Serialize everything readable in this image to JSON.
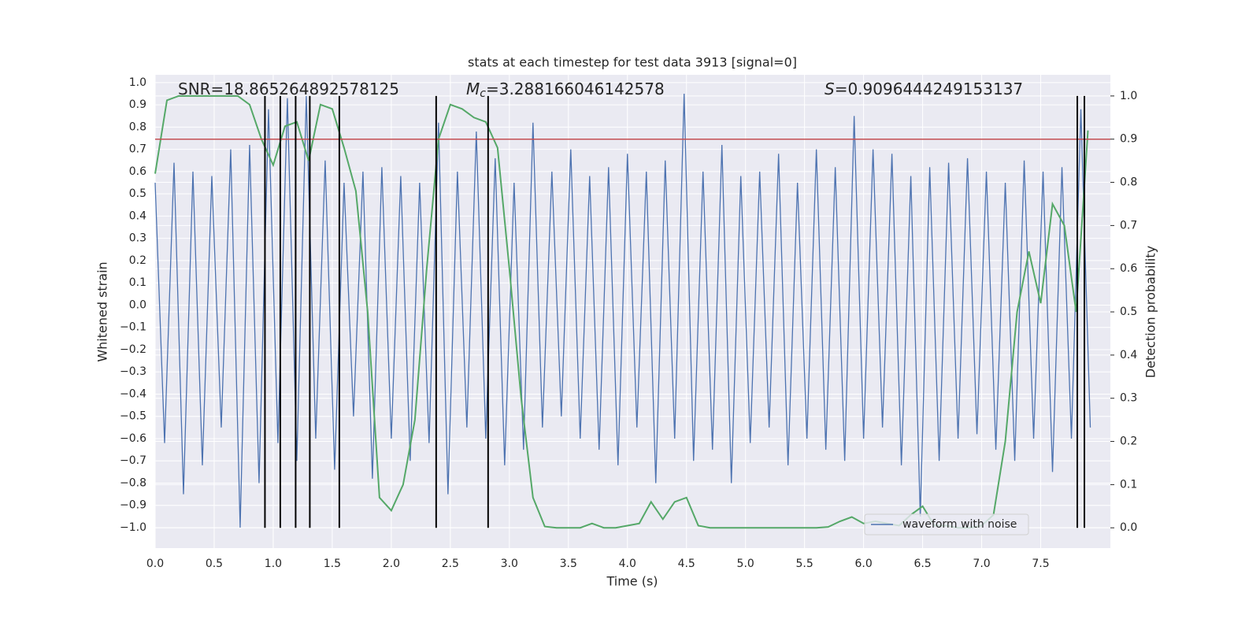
{
  "chart_data": {
    "type": "line",
    "title": "stats at each timestep for test data 3913 [signal=0]",
    "x_label": "Time (s)",
    "y_label": "Whitened strain",
    "y2_label": "Detection probability",
    "annotations": [
      {
        "text": "SNR=18.865264892578125"
      },
      {
        "symbol": "M",
        "subscript": "c",
        "text": "=3.288166046142578"
      },
      {
        "symbol": "S",
        "text": "=0.9096444249153137"
      }
    ],
    "grid": true,
    "legend": "lower right",
    "xlim": [
      0,
      8.09
    ],
    "ylim": [
      -1.092,
      1.035
    ],
    "y2lim": [
      -0.047,
      1.049
    ],
    "xticks": [
      {
        "value": 0,
        "label": "0.0"
      },
      0.5,
      {
        "value": 1,
        "label": "1.0"
      },
      1.5,
      {
        "value": 2,
        "label": "2.0"
      },
      2.5,
      {
        "value": 3,
        "label": "3.0"
      },
      3.5,
      {
        "value": 4,
        "label": "4.0"
      },
      4.5,
      {
        "value": 5,
        "label": "5.0"
      },
      5.5,
      {
        "value": 6,
        "label": "6.0"
      },
      6.5,
      {
        "value": 7,
        "label": "7.0"
      },
      7.5
    ],
    "yticks": [
      {
        "value": -1,
        "label": "−1.0"
      },
      {
        "value": -0.9,
        "label": "−0.9"
      },
      {
        "value": -0.8,
        "label": "−0.8"
      },
      {
        "value": -0.7,
        "label": "−0.7"
      },
      {
        "value": -0.6,
        "label": "−0.6"
      },
      {
        "value": -0.5,
        "label": "−0.5"
      },
      {
        "value": -0.4,
        "label": "−0.4"
      },
      {
        "value": -0.3,
        "label": "−0.3"
      },
      {
        "value": -0.2,
        "label": "−0.2"
      },
      {
        "value": -0.1,
        "label": "−0.1"
      },
      {
        "value": 0,
        "label": "0.0"
      },
      0.1,
      0.2,
      0.3,
      0.4,
      0.5,
      0.6,
      0.7,
      0.8,
      0.9,
      {
        "value": 1,
        "label": "1.0"
      }
    ],
    "y2ticks": [
      {
        "value": 0,
        "label": "0.0"
      },
      0.1,
      0.2,
      0.3,
      0.4,
      0.5,
      0.6,
      0.7,
      0.8,
      0.9,
      {
        "value": 1,
        "label": "1.0"
      }
    ],
    "series": [
      {
        "name": "waveform with noise",
        "color": "#4c72b0",
        "x": [
          0.0,
          0.08,
          0.16,
          0.24,
          0.32,
          0.4,
          0.48,
          0.56,
          0.64,
          0.72,
          0.8,
          0.88,
          0.96,
          1.04,
          1.12,
          1.2,
          1.28,
          1.36,
          1.44,
          1.52,
          1.6,
          1.68,
          1.76,
          1.84,
          1.92,
          2.0,
          2.08,
          2.16,
          2.24,
          2.32,
          2.4,
          2.48,
          2.56,
          2.64,
          2.72,
          2.8,
          2.88,
          2.96,
          3.04,
          3.12,
          3.2,
          3.28,
          3.36,
          3.44,
          3.52,
          3.6,
          3.68,
          3.76,
          3.84,
          3.92,
          4.0,
          4.08,
          4.16,
          4.24,
          4.32,
          4.4,
          4.48,
          4.56,
          4.64,
          4.72,
          4.8,
          4.88,
          4.96,
          5.04,
          5.12,
          5.2,
          5.28,
          5.36,
          5.44,
          5.52,
          5.6,
          5.68,
          5.76,
          5.84,
          5.92,
          6.0,
          6.08,
          6.16,
          6.24,
          6.32,
          6.4,
          6.48,
          6.56,
          6.64,
          6.72,
          6.8,
          6.88,
          6.96,
          7.04,
          7.12,
          7.2,
          7.28,
          7.36,
          7.44,
          7.52,
          7.6,
          7.68,
          7.76,
          7.84,
          7.92
        ],
        "values": [
          0.55,
          -0.62,
          0.64,
          -0.85,
          0.6,
          -0.72,
          0.58,
          -0.55,
          0.7,
          -1.0,
          0.72,
          -0.8,
          0.88,
          -0.62,
          0.93,
          -0.7,
          0.94,
          -0.6,
          0.65,
          -0.74,
          0.55,
          -0.5,
          0.6,
          -0.78,
          0.62,
          -0.6,
          0.58,
          -0.7,
          0.55,
          -0.62,
          0.82,
          -0.85,
          0.6,
          -0.55,
          0.78,
          -0.6,
          0.66,
          -0.72,
          0.55,
          -0.65,
          0.82,
          -0.55,
          0.6,
          -0.5,
          0.7,
          -0.6,
          0.58,
          -0.65,
          0.62,
          -0.72,
          0.68,
          -0.55,
          0.6,
          -0.8,
          0.65,
          -0.6,
          0.95,
          -0.7,
          0.6,
          -0.65,
          0.72,
          -0.8,
          0.58,
          -0.62,
          0.6,
          -0.55,
          0.68,
          -0.72,
          0.55,
          -0.6,
          0.7,
          -0.65,
          0.62,
          -0.7,
          0.85,
          -0.6,
          0.7,
          -0.55,
          0.68,
          -0.72,
          0.58,
          -0.95,
          0.62,
          -0.7,
          0.64,
          -0.6,
          0.66,
          -0.58,
          0.6,
          -0.65,
          0.55,
          -0.7,
          0.65,
          -0.6,
          0.6,
          -0.75,
          0.62,
          -0.6,
          0.88,
          -0.55
        ]
      },
      {
        "color": "#55a868",
        "axis": "y2",
        "x": [
          0.0,
          0.1,
          0.2,
          0.3,
          0.4,
          0.5,
          0.6,
          0.7,
          0.8,
          0.9,
          1.0,
          1.1,
          1.2,
          1.3,
          1.4,
          1.5,
          1.6,
          1.7,
          1.8,
          1.9,
          2.0,
          2.1,
          2.2,
          2.3,
          2.4,
          2.5,
          2.6,
          2.7,
          2.8,
          2.9,
          3.0,
          3.1,
          3.2,
          3.3,
          3.4,
          3.5,
          3.6,
          3.7,
          3.8,
          3.9,
          4.0,
          4.1,
          4.2,
          4.3,
          4.4,
          4.5,
          4.6,
          4.7,
          4.8,
          4.9,
          5.0,
          5.1,
          5.2,
          5.3,
          5.4,
          5.5,
          5.6,
          5.7,
          5.8,
          5.9,
          6.0,
          6.1,
          6.2,
          6.3,
          6.4,
          6.5,
          6.6,
          6.7,
          6.8,
          6.9,
          7.0,
          7.1,
          7.2,
          7.3,
          7.4,
          7.5,
          7.6,
          7.7,
          7.8,
          7.9
        ],
        "values": [
          0.82,
          0.99,
          1.0,
          1.0,
          1.0,
          1.0,
          1.0,
          1.0,
          0.98,
          0.9,
          0.84,
          0.93,
          0.94,
          0.85,
          0.98,
          0.97,
          0.88,
          0.78,
          0.5,
          0.07,
          0.04,
          0.1,
          0.25,
          0.6,
          0.9,
          0.98,
          0.97,
          0.95,
          0.94,
          0.88,
          0.6,
          0.3,
          0.07,
          0.003,
          0.0,
          0.0,
          0.0,
          0.01,
          0.0,
          0.0,
          0.005,
          0.01,
          0.06,
          0.02,
          0.06,
          0.07,
          0.005,
          0.0,
          0.0,
          0.0,
          0.0,
          0.0,
          0.0,
          0.0,
          0.0,
          0.0,
          0.0,
          0.002,
          0.015,
          0.025,
          0.01,
          0.015,
          0.01,
          0.005,
          0.03,
          0.05,
          0.005,
          0.005,
          0.0,
          0.0,
          0.005,
          0.03,
          0.2,
          0.5,
          0.64,
          0.52,
          0.75,
          0.7,
          0.5,
          0.92
        ]
      }
    ],
    "hline": {
      "y": 0.9,
      "axis": "y2",
      "color": "#c44e52"
    },
    "vlines": {
      "x": [
        0.93,
        1.06,
        1.19,
        1.31,
        1.56,
        2.38,
        2.82,
        7.81,
        7.87
      ],
      "ymin": 0,
      "ymax": 1,
      "axis": "y2",
      "color": "#000000"
    }
  }
}
